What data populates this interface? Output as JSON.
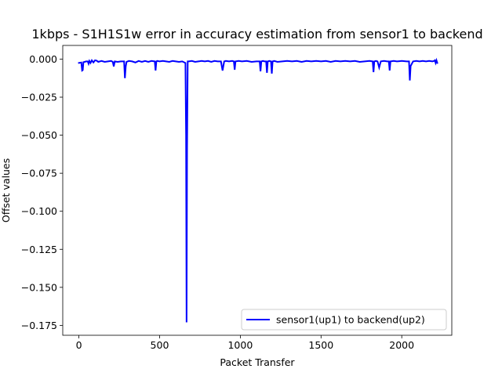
{
  "chart_data": {
    "type": "line",
    "title": "1kbps - S1H1S1w error in accuracy estimation from sensor1 to backend",
    "xlabel": "Packet Transfer",
    "ylabel": "Offset values",
    "xlim": [
      -100,
      2310
    ],
    "ylim": [
      -0.1815,
      0.009
    ],
    "x_ticks": [
      0,
      500,
      1000,
      1500,
      2000
    ],
    "x_tick_labels": [
      "0",
      "500",
      "1000",
      "1500",
      "2000"
    ],
    "y_ticks": [
      0.0,
      -0.025,
      -0.05,
      -0.075,
      -0.1,
      -0.125,
      -0.15,
      -0.175
    ],
    "y_tick_labels": [
      "0.000",
      "−0.025",
      "−0.050",
      "−0.075",
      "−0.100",
      "−0.125",
      "−0.150",
      "−0.175"
    ],
    "grid": false,
    "legend_position": "lower-right",
    "series": [
      {
        "name": "sensor1(up1) to backend(up2)",
        "color": "#0000ff",
        "x": [
          0,
          15,
          20,
          24,
          28,
          35,
          45,
          55,
          60,
          65,
          72,
          80,
          90,
          100,
          110,
          120,
          140,
          160,
          180,
          200,
          210,
          216,
          222,
          240,
          260,
          280,
          285,
          290,
          295,
          310,
          330,
          350,
          370,
          390,
          410,
          430,
          450,
          470,
          475,
          480,
          485,
          500,
          520,
          540,
          560,
          580,
          600,
          620,
          640,
          660,
          664,
          667,
          670,
          674,
          680,
          700,
          720,
          740,
          760,
          780,
          800,
          820,
          840,
          860,
          880,
          890,
          895,
          900,
          910,
          930,
          950,
          960,
          965,
          970,
          990,
          1010,
          1040,
          1070,
          1100,
          1120,
          1125,
          1130,
          1140,
          1150,
          1160,
          1165,
          1170,
          1180,
          1190,
          1195,
          1200,
          1210,
          1230,
          1260,
          1290,
          1320,
          1350,
          1380,
          1410,
          1440,
          1470,
          1500,
          1530,
          1560,
          1590,
          1620,
          1650,
          1680,
          1710,
          1740,
          1770,
          1800,
          1820,
          1825,
          1830,
          1840,
          1850,
          1860,
          1870,
          1890,
          1910,
          1920,
          1925,
          1930,
          1950,
          1970,
          2000,
          2030,
          2045,
          2050,
          2055,
          2070,
          2090,
          2110,
          2130,
          2150,
          2170,
          2190,
          2200,
          2205,
          2210,
          2215,
          2220
        ],
        "values": [
          -0.0025,
          -0.0022,
          -0.0075,
          -0.0072,
          -0.002,
          -0.0018,
          -0.0015,
          -0.0015,
          -0.003,
          -0.0012,
          -0.0025,
          -0.0008,
          -0.0022,
          -0.0008,
          -0.001,
          -0.0018,
          -0.0012,
          -0.0018,
          -0.0015,
          -0.0012,
          -0.0018,
          -0.0048,
          -0.0015,
          -0.0018,
          -0.0015,
          -0.0015,
          -0.0125,
          -0.005,
          -0.0018,
          -0.0012,
          -0.0015,
          -0.0022,
          -0.0012,
          -0.0018,
          -0.0012,
          -0.0018,
          -0.0012,
          -0.0015,
          -0.0075,
          -0.0015,
          -0.0012,
          -0.0015,
          -0.0012,
          -0.0015,
          -0.0018,
          -0.0012,
          -0.0015,
          -0.0018,
          -0.0015,
          -0.0025,
          -0.05,
          -0.173,
          -0.06,
          -0.0015,
          -0.0015,
          -0.0012,
          -0.0018,
          -0.0015,
          -0.0012,
          -0.0015,
          -0.0012,
          -0.0018,
          -0.0012,
          -0.0015,
          -0.0015,
          -0.0075,
          -0.0045,
          -0.0015,
          -0.0012,
          -0.0015,
          -0.0012,
          -0.0015,
          -0.007,
          -0.0015,
          -0.0012,
          -0.0015,
          -0.0012,
          -0.0018,
          -0.0015,
          -0.0015,
          -0.008,
          -0.0015,
          -0.0012,
          -0.0015,
          -0.0015,
          -0.009,
          -0.0015,
          -0.0012,
          -0.0015,
          -0.0095,
          -0.0015,
          -0.0012,
          -0.0018,
          -0.0015,
          -0.0012,
          -0.0015,
          -0.0012,
          -0.0018,
          -0.0012,
          -0.0015,
          -0.0012,
          -0.0015,
          -0.0012,
          -0.0018,
          -0.0012,
          -0.0015,
          -0.0012,
          -0.0015,
          -0.0012,
          -0.0018,
          -0.0015,
          -0.0012,
          -0.0015,
          -0.0085,
          -0.0015,
          -0.0012,
          -0.0015,
          -0.0055,
          -0.0015,
          -0.0012,
          -0.0015,
          -0.0015,
          -0.0075,
          -0.0015,
          -0.0012,
          -0.0015,
          -0.0012,
          -0.0015,
          -0.0015,
          -0.014,
          -0.0045,
          -0.0015,
          -0.0012,
          -0.0015,
          -0.0012,
          -0.0015,
          -0.0012,
          -0.0015,
          -0.0012,
          -0.0008,
          -0.0025,
          -0.0008,
          -0.0025
        ]
      }
    ]
  }
}
